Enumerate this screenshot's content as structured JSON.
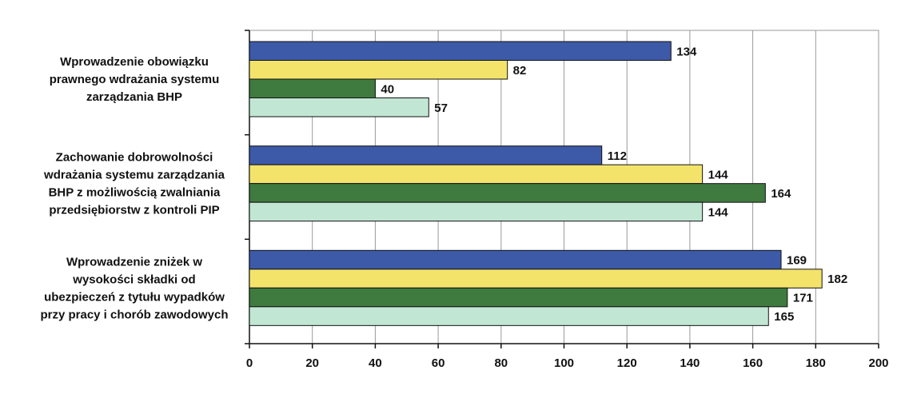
{
  "chart_data": {
    "type": "bar",
    "orientation": "horizontal",
    "categories": [
      [
        "Wprowadzenie obowiązku",
        "prawnego wdrażania systemu",
        "zarządzania BHP"
      ],
      [
        "Zachowanie dobrowolności",
        "wdrażania systemu zarządzania",
        "BHP z możliwością zwalniania",
        "przedsiębiorstw z kontroli PIP"
      ],
      [
        "Wprowadzenie zniżek w",
        "wysokości składki od",
        "ubezpieczeń z tytułu wypadków",
        "przy pracy i chorób zawodowych"
      ]
    ],
    "series": [
      {
        "values": [
          134,
          112,
          169
        ],
        "color": "#3d5aa8"
      },
      {
        "values": [
          82,
          144,
          182
        ],
        "color": "#f3e36b"
      },
      {
        "values": [
          40,
          164,
          171
        ],
        "color": "#3f7a3e"
      },
      {
        "values": [
          57,
          144,
          165
        ],
        "color": "#c2e6d4"
      }
    ],
    "xlim": [
      0,
      200
    ],
    "xticks": [
      0,
      20,
      40,
      60,
      80,
      100,
      120,
      140,
      160,
      180,
      200
    ],
    "grid": true,
    "legend": "none"
  }
}
